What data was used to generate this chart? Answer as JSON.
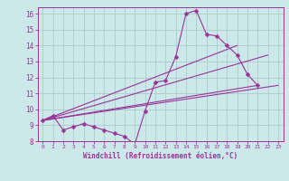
{
  "background_color": "#cce8e8",
  "grid_color": "#aacccc",
  "line_color": "#993399",
  "marker_color": "#993399",
  "xlabel": "Windchill (Refroidissement éolien,°C)",
  "xlabel_color": "#993399",
  "tick_color": "#993399",
  "xlim": [
    -0.5,
    23.5
  ],
  "ylim": [
    8,
    16.4
  ],
  "xticks": [
    0,
    1,
    2,
    3,
    4,
    5,
    6,
    7,
    8,
    9,
    10,
    11,
    12,
    13,
    14,
    15,
    16,
    17,
    18,
    19,
    20,
    21,
    22,
    23
  ],
  "yticks": [
    8,
    9,
    10,
    11,
    12,
    13,
    14,
    15,
    16
  ],
  "main_curve": {
    "x": [
      0,
      1,
      2,
      3,
      4,
      5,
      6,
      7,
      8,
      9,
      10,
      11,
      12,
      13,
      14,
      15,
      16,
      17,
      18,
      19,
      20,
      21
    ],
    "y": [
      9.3,
      9.6,
      8.7,
      8.9,
      9.1,
      8.9,
      8.7,
      8.5,
      8.3,
      7.8,
      9.9,
      11.7,
      11.8,
      13.3,
      16.0,
      16.2,
      14.7,
      14.6,
      14.0,
      13.4,
      12.2,
      11.5
    ]
  },
  "straight_lines": [
    {
      "x": [
        0,
        23
      ],
      "y": [
        9.3,
        11.5
      ]
    },
    {
      "x": [
        0,
        21
      ],
      "y": [
        9.3,
        11.5
      ]
    },
    {
      "x": [
        0,
        22
      ],
      "y": [
        9.3,
        13.4
      ]
    },
    {
      "x": [
        0,
        19
      ],
      "y": [
        9.3,
        14.0
      ]
    }
  ]
}
